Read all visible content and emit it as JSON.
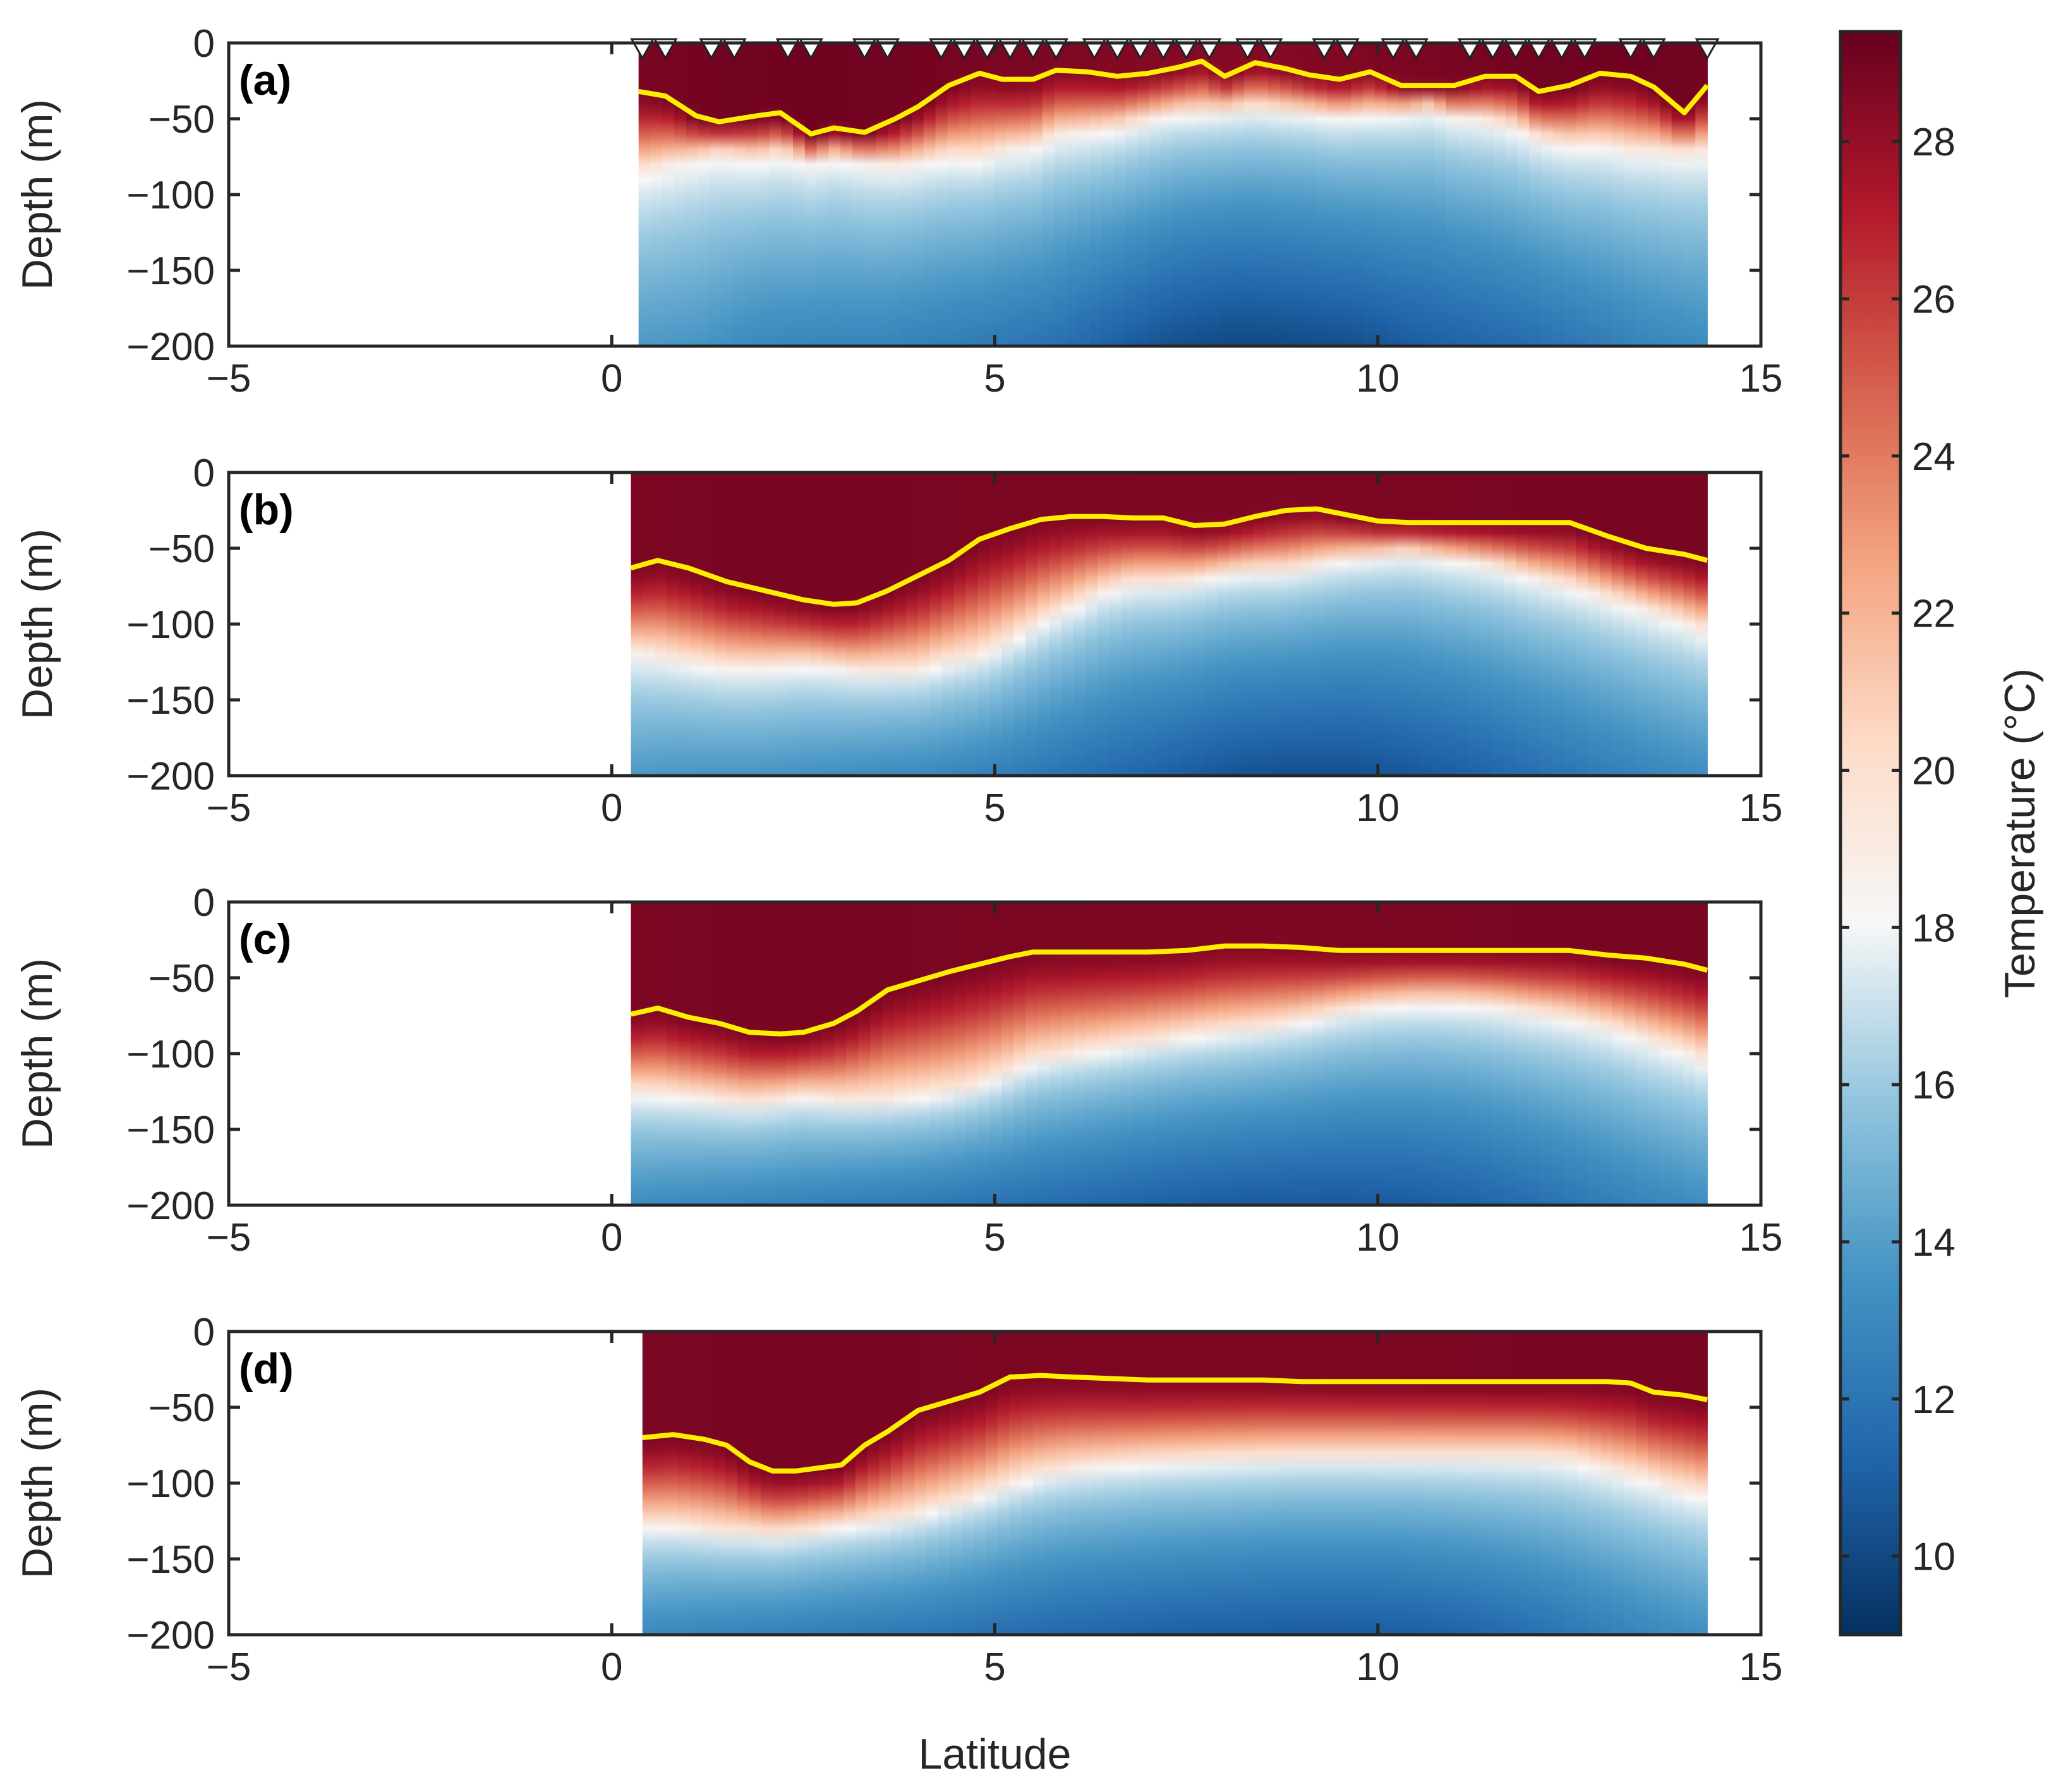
{
  "chart_data": {
    "type": "heatmap",
    "xlabel": "Latitude",
    "ylabel": "Depth (m)",
    "xlim": [
      -5,
      15
    ],
    "ylim": [
      -200,
      0
    ],
    "xticks": [
      -5,
      0,
      5,
      10,
      15
    ],
    "yticks": [
      0,
      -50,
      -100,
      -150,
      -200
    ],
    "colorbar": {
      "label": "Temperature (°C)",
      "range": [
        9,
        29.4
      ],
      "ticks": [
        10,
        12,
        14,
        16,
        18,
        20,
        22,
        24,
        26,
        28
      ],
      "colormap": [
        "#053061",
        "#2166ac",
        "#4393c3",
        "#92c5de",
        "#f7f7f7",
        "#fddbc7",
        "#f4a582",
        "#d6604d",
        "#b2182b",
        "#67001f"
      ]
    },
    "panels": [
      {
        "label": "(a)",
        "lat_range": [
          0.35,
          14.3
        ],
        "stations": [
          0.4,
          0.7,
          1.3,
          1.6,
          2.3,
          2.6,
          3.3,
          3.6,
          4.3,
          4.6,
          4.9,
          5.2,
          5.5,
          5.8,
          6.3,
          6.6,
          6.9,
          7.2,
          7.5,
          7.8,
          8.3,
          8.6,
          9.3,
          9.6,
          10.2,
          10.5,
          11.2,
          11.5,
          11.8,
          12.1,
          12.4,
          12.7,
          13.3,
          13.6,
          14.3
        ],
        "mld_lat": [
          0.35,
          0.7,
          1.1,
          1.4,
          1.9,
          2.2,
          2.6,
          2.9,
          3.3,
          3.7,
          4.0,
          4.4,
          4.8,
          5.1,
          5.5,
          5.8,
          6.2,
          6.6,
          7.0,
          7.4,
          7.7,
          8.0,
          8.4,
          8.8,
          9.1,
          9.5,
          9.9,
          10.3,
          10.7,
          11.0,
          11.4,
          11.8,
          12.1,
          12.5,
          12.9,
          13.3,
          13.6,
          14.0,
          14.3
        ],
        "mld_depth": [
          -32,
          -35,
          -48,
          -52,
          -48,
          -46,
          -60,
          -56,
          -59,
          -50,
          -42,
          -28,
          -20,
          -24,
          -24,
          -18,
          -19,
          -22,
          -20,
          -16,
          -12,
          -22,
          -13,
          -17,
          -21,
          -24,
          -19,
          -28,
          -28,
          -28,
          -22,
          -22,
          -32,
          -28,
          -20,
          -22,
          -29,
          -46,
          -28
        ],
        "iso20_depth": [
          -85,
          -80,
          -75,
          -72,
          -75,
          -72,
          -78,
          -74,
          -78,
          -80,
          -78,
          -74,
          -75,
          -70,
          -68,
          -60,
          -58,
          -55,
          -50,
          -46,
          -45,
          -44,
          -42,
          -44,
          -45,
          -48,
          -46,
          -45,
          -42,
          -48,
          -50,
          -55,
          -62,
          -66,
          -66,
          -70,
          -70,
          -72,
          -70
        ],
        "deep_min": [
          13.8,
          13.6,
          13.0,
          12.8,
          12.8,
          12.5,
          12.2,
          11.8,
          11.0,
          10.3,
          10.0,
          10.1,
          10.3,
          10.8,
          11.2,
          11.6,
          12.2,
          12.8,
          13.2
        ]
      },
      {
        "label": "(b)",
        "lat_range": [
          0.25,
          14.3
        ],
        "mld_lat": [
          0.25,
          0.6,
          1.0,
          1.5,
          2.0,
          2.5,
          2.9,
          3.2,
          3.6,
          4.0,
          4.4,
          4.8,
          5.2,
          5.6,
          6.0,
          6.4,
          6.8,
          7.2,
          7.6,
          8.0,
          8.4,
          8.8,
          9.2,
          9.6,
          10.0,
          10.4,
          10.8,
          11.2,
          11.6,
          12.0,
          12.5,
          13.0,
          13.5,
          14.0,
          14.3
        ],
        "mld_depth": [
          -63,
          -58,
          -63,
          -72,
          -78,
          -84,
          -87,
          -86,
          -78,
          -68,
          -58,
          -44,
          -37,
          -31,
          -29,
          -29,
          -30,
          -30,
          -35,
          -34,
          -29,
          -25,
          -24,
          -28,
          -32,
          -33,
          -33,
          -33,
          -33,
          -33,
          -33,
          -42,
          -50,
          -54,
          -58
        ],
        "iso20_depth": [
          -118,
          -120,
          -124,
          -128,
          -128,
          -126,
          -128,
          -130,
          -130,
          -130,
          -124,
          -120,
          -110,
          -98,
          -88,
          -78,
          -72,
          -72,
          -70,
          -66,
          -64,
          -64,
          -60,
          -56,
          -54,
          -52,
          -55,
          -58,
          -62,
          -68,
          -74,
          -82,
          -90,
          -98,
          -104
        ],
        "deep_min": [
          13.8,
          13.6,
          13.6,
          13.4,
          13.2,
          13.0,
          12.6,
          12.0,
          11.5,
          11.0,
          10.5,
          10.3,
          10.3,
          10.6,
          11.0,
          11.6,
          12.2,
          12.8,
          13.3
        ]
      },
      {
        "label": "(c)",
        "lat_range": [
          0.25,
          14.3
        ],
        "mld_lat": [
          0.25,
          0.6,
          1.0,
          1.4,
          1.8,
          2.2,
          2.5,
          2.9,
          3.2,
          3.6,
          4.0,
          4.4,
          4.8,
          5.2,
          5.5,
          6.0,
          6.5,
          7.0,
          7.5,
          8.0,
          8.5,
          9.0,
          9.5,
          10.0,
          10.5,
          11.0,
          11.5,
          12.0,
          12.5,
          13.0,
          13.5,
          14.0,
          14.3
        ],
        "mld_depth": [
          -74,
          -70,
          -76,
          -80,
          -86,
          -87,
          -86,
          -80,
          -72,
          -58,
          -52,
          -46,
          -41,
          -36,
          -33,
          -33,
          -33,
          -33,
          -32,
          -29,
          -29,
          -30,
          -32,
          -32,
          -32,
          -32,
          -32,
          -32,
          -32,
          -35,
          -37,
          -41,
          -45
        ],
        "iso20_depth": [
          -125,
          -126,
          -128,
          -130,
          -132,
          -130,
          -128,
          -130,
          -130,
          -130,
          -128,
          -125,
          -120,
          -112,
          -105,
          -100,
          -96,
          -92,
          -88,
          -85,
          -82,
          -78,
          -72,
          -68,
          -66,
          -66,
          -68,
          -72,
          -76,
          -82,
          -90,
          -98,
          -104
        ],
        "deep_min": [
          13.2,
          13.0,
          12.8,
          12.6,
          12.4,
          12.2,
          11.9,
          11.6,
          11.3,
          11.0,
          10.8,
          10.7,
          10.7,
          10.8,
          11.1,
          11.6,
          12.2,
          12.8,
          13.3
        ]
      },
      {
        "label": "(d)",
        "lat_range": [
          0.4,
          14.3
        ],
        "mld_lat": [
          0.4,
          0.8,
          1.2,
          1.5,
          1.8,
          2.1,
          2.4,
          2.7,
          3.0,
          3.3,
          3.6,
          4.0,
          4.4,
          4.8,
          5.2,
          5.6,
          6.0,
          6.5,
          7.0,
          7.5,
          8.0,
          8.5,
          9.0,
          9.5,
          10.0,
          10.5,
          11.0,
          11.5,
          12.0,
          12.5,
          13.0,
          13.3,
          13.6,
          14.0,
          14.3
        ],
        "mld_depth": [
          -70,
          -68,
          -71,
          -75,
          -86,
          -92,
          -92,
          -90,
          -88,
          -75,
          -66,
          -52,
          -46,
          -40,
          -30,
          -29,
          -30,
          -31,
          -32,
          -32,
          -32,
          -32,
          -33,
          -33,
          -33,
          -33,
          -33,
          -33,
          -33,
          -33,
          -33,
          -34,
          -40,
          -42,
          -45
        ],
        "iso20_depth": [
          -128,
          -128,
          -130,
          -132,
          -132,
          -134,
          -132,
          -130,
          -128,
          -126,
          -124,
          -120,
          -114,
          -108,
          -100,
          -94,
          -90,
          -88,
          -86,
          -85,
          -84,
          -83,
          -82,
          -82,
          -82,
          -82,
          -82,
          -82,
          -82,
          -84,
          -90,
          -94,
          -98,
          -104,
          -108
        ],
        "deep_min": [
          13.0,
          12.8,
          12.6,
          12.4,
          12.2,
          12.0,
          11.7,
          11.4,
          11.2,
          11.0,
          10.9,
          10.8,
          10.8,
          10.9,
          11.2,
          11.7,
          12.3,
          12.9,
          13.4
        ]
      }
    ]
  }
}
